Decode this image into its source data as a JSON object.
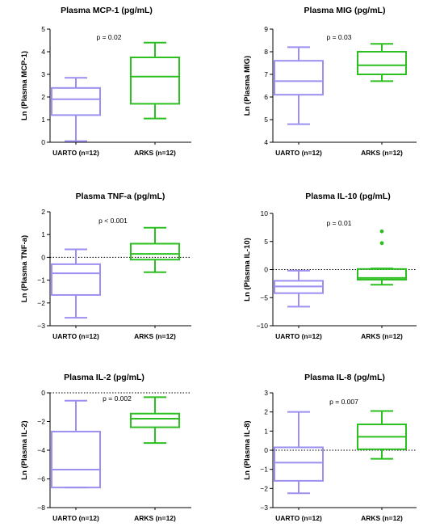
{
  "figure": {
    "colors": {
      "uarto": "#9b8ff0",
      "arks": "#2bbf1f",
      "axis": "#000000"
    }
  },
  "chart_data": [
    {
      "type": "box",
      "title": "Plasma MCP-1 (pg/mL)",
      "ylabel": "Ln (Plasma MCP-1)",
      "ylim": [
        0,
        5
      ],
      "yticks": [
        0,
        1,
        2,
        3,
        4,
        5
      ],
      "reference_line": null,
      "p_value": "p = 0.02",
      "categories": [
        "UARTO (n=12)",
        "ARKS (n=12)"
      ],
      "series": [
        {
          "min": 0.05,
          "q1": 1.2,
          "median": 1.9,
          "q3": 2.4,
          "max": 2.85,
          "outliers": []
        },
        {
          "min": 1.05,
          "q1": 1.7,
          "median": 2.9,
          "q3": 3.75,
          "max": 4.4,
          "outliers": []
        }
      ]
    },
    {
      "type": "box",
      "title": "Plasma MIG (pg/mL)",
      "ylabel": "Ln (Plasma MIG)",
      "ylim": [
        4,
        9
      ],
      "yticks": [
        4,
        5,
        6,
        7,
        8,
        9
      ],
      "reference_line": null,
      "p_value": "p = 0.03",
      "categories": [
        "UARTO (n=12)",
        "ARKS (n=12)"
      ],
      "series": [
        {
          "min": 4.8,
          "q1": 6.1,
          "median": 6.7,
          "q3": 7.6,
          "max": 8.2,
          "outliers": []
        },
        {
          "min": 6.7,
          "q1": 7.0,
          "median": 7.4,
          "q3": 8.0,
          "max": 8.35,
          "outliers": []
        }
      ]
    },
    {
      "type": "box",
      "title": "Plasma TNF-a (pg/mL)",
      "ylabel": "Ln (Plasma TNF-a)",
      "ylim": [
        -3,
        2
      ],
      "yticks": [
        -3,
        -2,
        -1,
        0,
        1,
        2
      ],
      "reference_line": 0,
      "p_value": "p < 0.001",
      "categories": [
        "UARTO (n=12)",
        "ARKS (n=12)"
      ],
      "series": [
        {
          "min": -2.65,
          "q1": -1.65,
          "median": -0.7,
          "q3": -0.3,
          "max": 0.35,
          "outliers": []
        },
        {
          "min": -0.65,
          "q1": -0.1,
          "median": 0.15,
          "q3": 0.6,
          "max": 1.3,
          "outliers": []
        }
      ]
    },
    {
      "type": "box",
      "title": "Plasma IL-10 (pg/mL)",
      "ylabel": "Ln (Plasma IL-10)",
      "ylim": [
        -10,
        10
      ],
      "yticks": [
        -10,
        -5,
        0,
        5,
        10
      ],
      "reference_line": 0,
      "p_value": "p = 0.01",
      "categories": [
        "UARTO (n=12)",
        "ARKS (n=12)"
      ],
      "series": [
        {
          "min": -6.6,
          "q1": -4.2,
          "median": -3.0,
          "q3": -2.0,
          "max": -0.2,
          "outliers": []
        },
        {
          "min": -2.7,
          "q1": -1.8,
          "median": -1.5,
          "q3": 0.1,
          "max": 0.2,
          "outliers": [
            4.7,
            6.8
          ]
        }
      ]
    },
    {
      "type": "box",
      "title": "Plasma IL-2 (pg/mL)",
      "ylabel": "Ln (Plasma IL-2)",
      "ylim": [
        -8,
        0
      ],
      "yticks": [
        -8,
        -6,
        -4,
        -2,
        0
      ],
      "reference_line": 0,
      "p_value": "p = 0.002",
      "categories": [
        "UARTO (n=12)",
        "ARKS (n=12)"
      ],
      "series": [
        {
          "min": -6.6,
          "q1": -6.6,
          "median": -5.35,
          "q3": -2.7,
          "max": -0.55,
          "outliers": []
        },
        {
          "min": -3.5,
          "q1": -2.4,
          "median": -1.8,
          "q3": -1.45,
          "max": -0.3,
          "outliers": []
        }
      ]
    },
    {
      "type": "box",
      "title": "Plasma IL-8 (pg/mL)",
      "ylabel": "Ln (Plasma IL-8)",
      "ylim": [
        -3,
        3
      ],
      "yticks": [
        -3,
        -2,
        -1,
        0,
        1,
        2,
        3
      ],
      "reference_line": 0,
      "p_value": "p = 0.007",
      "categories": [
        "UARTO (n=12)",
        "ARKS (n=12)"
      ],
      "series": [
        {
          "min": -2.25,
          "q1": -1.6,
          "median": -0.65,
          "q3": 0.15,
          "max": 2.0,
          "outliers": []
        },
        {
          "min": -0.45,
          "q1": 0.05,
          "median": 0.7,
          "q3": 1.35,
          "max": 2.05,
          "outliers": []
        }
      ]
    }
  ]
}
